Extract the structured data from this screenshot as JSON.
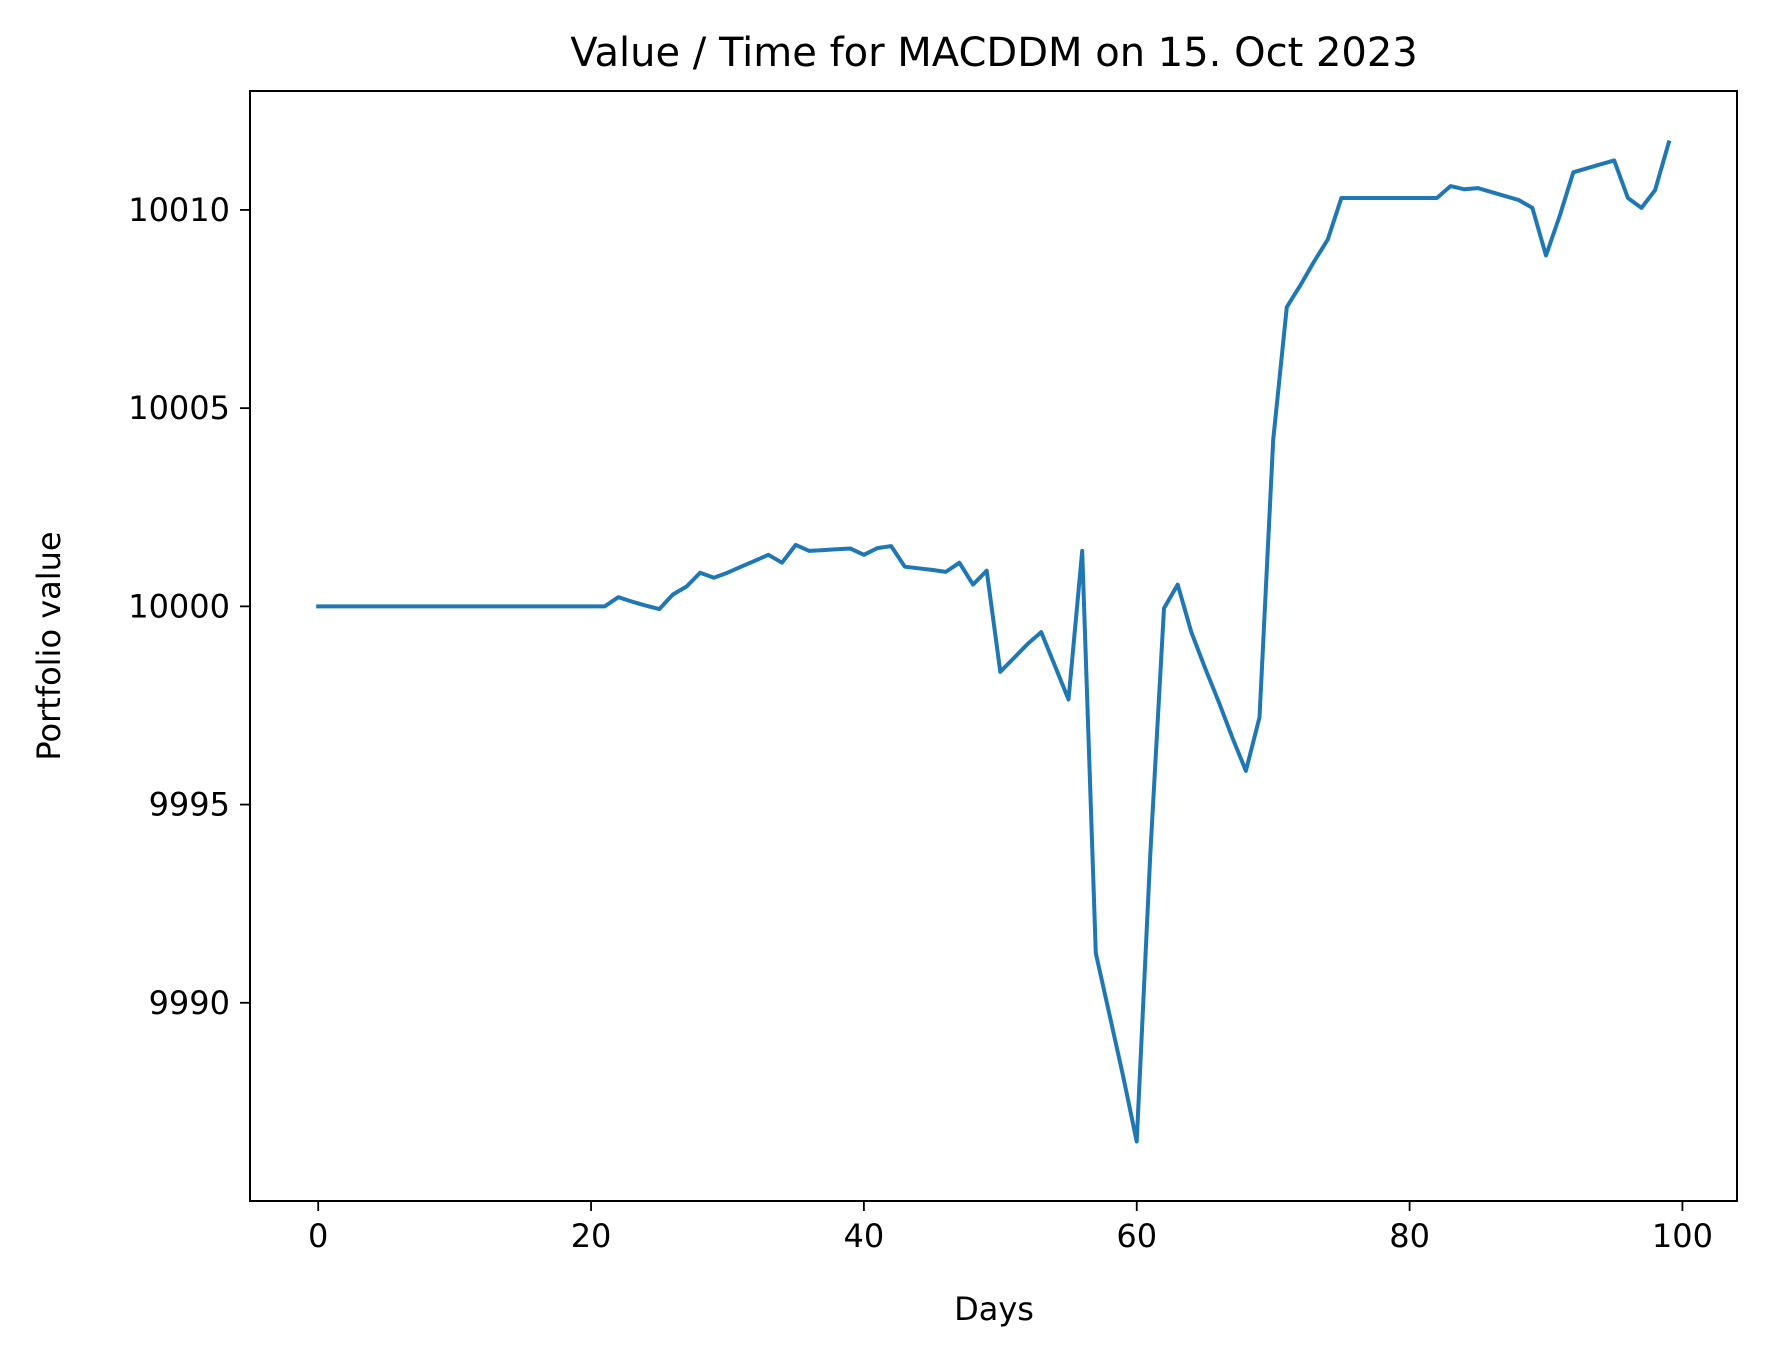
{
  "chart_data": {
    "type": "line",
    "title": "Value / Time for MACDDM on 15. Oct 2023",
    "xlabel": "Days",
    "ylabel": "Portfolio value",
    "xlim": [
      -5,
      104
    ],
    "ylim": [
      9985.0,
      10013.0
    ],
    "xticks": [
      0,
      20,
      40,
      60,
      80,
      100
    ],
    "yticks": [
      9990,
      9995,
      10000,
      10005,
      10010
    ],
    "grid": false,
    "line_color": "#1f77b4",
    "series": [
      {
        "x": [
          0,
          1,
          2,
          3,
          4,
          5,
          6,
          7,
          8,
          9,
          10,
          11,
          12,
          13,
          14,
          15,
          16,
          17,
          18,
          19,
          20,
          21,
          22,
          23,
          24,
          25,
          26,
          27,
          28,
          29,
          30,
          31,
          32,
          33,
          34,
          35,
          36,
          37,
          38,
          39,
          40,
          41,
          42,
          43,
          44,
          45,
          46,
          47,
          48,
          49,
          50,
          51,
          52,
          53,
          54,
          55,
          56,
          57,
          58,
          59,
          60,
          61,
          62,
          63,
          64,
          65,
          66,
          67,
          68,
          69,
          70,
          71,
          72,
          73,
          74,
          75,
          76,
          77,
          78,
          79,
          80,
          81,
          82,
          83,
          84,
          85,
          86,
          87,
          88,
          89,
          90,
          91,
          92,
          93,
          94,
          95,
          96,
          97,
          98,
          99
        ],
        "y": [
          10000,
          10000,
          10000,
          10000,
          10000,
          10000,
          10000,
          10000,
          10000,
          10000,
          10000,
          10000,
          10000,
          10000,
          10000,
          10000,
          10000,
          10000,
          10000,
          10000,
          10000,
          10000,
          10000.23,
          10000.12,
          10000.02,
          9999.93,
          10000.3,
          10000.5,
          10000.85,
          10000.72,
          10000.85,
          10001.0,
          10001.15,
          10001.3,
          10001.1,
          10001.55,
          10001.4,
          10001.42,
          10001.44,
          10001.46,
          10001.3,
          10001.47,
          10001.52,
          10001.0,
          10000.96,
          10000.92,
          10000.87,
          10001.1,
          10000.55,
          10000.9,
          9998.35,
          9998.7,
          9999.05,
          9999.35,
          9998.5,
          9997.65,
          10001.4,
          9991.25,
          9989.7,
          9988.15,
          9986.5,
          9993.8,
          9999.95,
          10000.55,
          9999.35,
          9998.45,
          9997.6,
          9996.7,
          9995.85,
          9997.2,
          10004.2,
          10007.55,
          10008.1,
          10008.7,
          10009.25,
          10010.3,
          10010.3,
          10010.3,
          10010.3,
          10010.3,
          10010.3,
          10010.3,
          10010.3,
          10010.6,
          10010.52,
          10010.55,
          10010.45,
          10010.35,
          10010.25,
          10010.05,
          10008.85,
          10009.85,
          10010.95,
          10011.05,
          10011.15,
          10011.25,
          10010.3,
          10010.05,
          10010.5,
          10011.7
        ]
      }
    ]
  }
}
